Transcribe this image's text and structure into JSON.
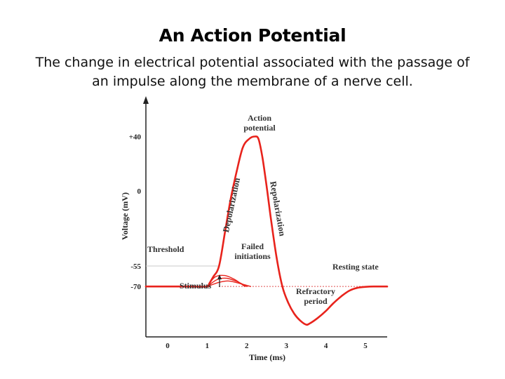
{
  "title": "An Action Potential",
  "subtitle": "The change in electrical potential associated with the passage of an impulse along the membrane of a nerve cell.",
  "colors": {
    "trace": "#e8231c",
    "axis": "#222222",
    "threshold_line": "#c8c8c8",
    "resting_line": "#e05050",
    "text": "#222222"
  },
  "chart_data": {
    "type": "line",
    "title": "",
    "xlabel": "Time (ms)",
    "ylabel": "Voltage (mV)",
    "xlim": [
      -0.55,
      5.55
    ],
    "ylim": [
      -107,
      65
    ],
    "x_ticks": [
      "0",
      "1",
      "2",
      "3",
      "4",
      "5"
    ],
    "y_ticks": [
      "+40",
      "0",
      "-55",
      "-70"
    ],
    "y_tick_values": [
      40,
      0,
      -55,
      -70
    ],
    "grid": false,
    "legend": "none",
    "series": [
      {
        "x": [
          -0.55,
          0.5,
          1.0,
          1.05,
          1.15,
          1.3,
          1.45,
          1.6,
          1.75,
          1.9,
          2.05,
          2.2,
          2.3,
          2.4,
          2.5,
          2.6,
          2.75,
          2.9,
          3.05,
          3.2,
          3.35,
          3.5,
          3.6,
          3.8,
          4.0,
          4.2,
          4.4,
          4.6,
          4.8,
          5.0,
          5.2,
          5.55
        ],
        "y": [
          -70,
          -70,
          -70,
          -68,
          -63,
          -55,
          -30,
          -5,
          15,
          32,
          38,
          40,
          38,
          24,
          4,
          -18,
          -48,
          -70,
          -82,
          -90,
          -95,
          -98,
          -97,
          -93,
          -88,
          -82,
          -77,
          -73,
          -71,
          -70.3,
          -70,
          -70
        ]
      },
      {
        "x": [
          1.0,
          1.2,
          1.45,
          1.7,
          1.95
        ],
        "y": [
          -70,
          -63,
          -62,
          -65,
          -70
        ]
      },
      {
        "x": [
          1.0,
          1.25,
          1.5,
          1.8,
          2.0
        ],
        "y": [
          -70,
          -65,
          -64,
          -67,
          -70
        ]
      },
      {
        "x": [
          1.0,
          1.3,
          1.55,
          1.85,
          2.1
        ],
        "y": [
          -70,
          -67,
          -66,
          -68,
          -70
        ]
      }
    ],
    "reference_lines": [
      {
        "label": "Threshold",
        "y": -55
      },
      {
        "label": "Resting state",
        "y": -70
      }
    ],
    "annotations": {
      "action_potential": [
        "Action",
        "potential"
      ],
      "depolarization": "Depolarization",
      "repolarization": "Repolarization",
      "failed_initiations": [
        "Failed",
        "initiations"
      ],
      "stimulus": "Stimulus",
      "refractory_period": [
        "Refractory",
        "period"
      ]
    }
  }
}
